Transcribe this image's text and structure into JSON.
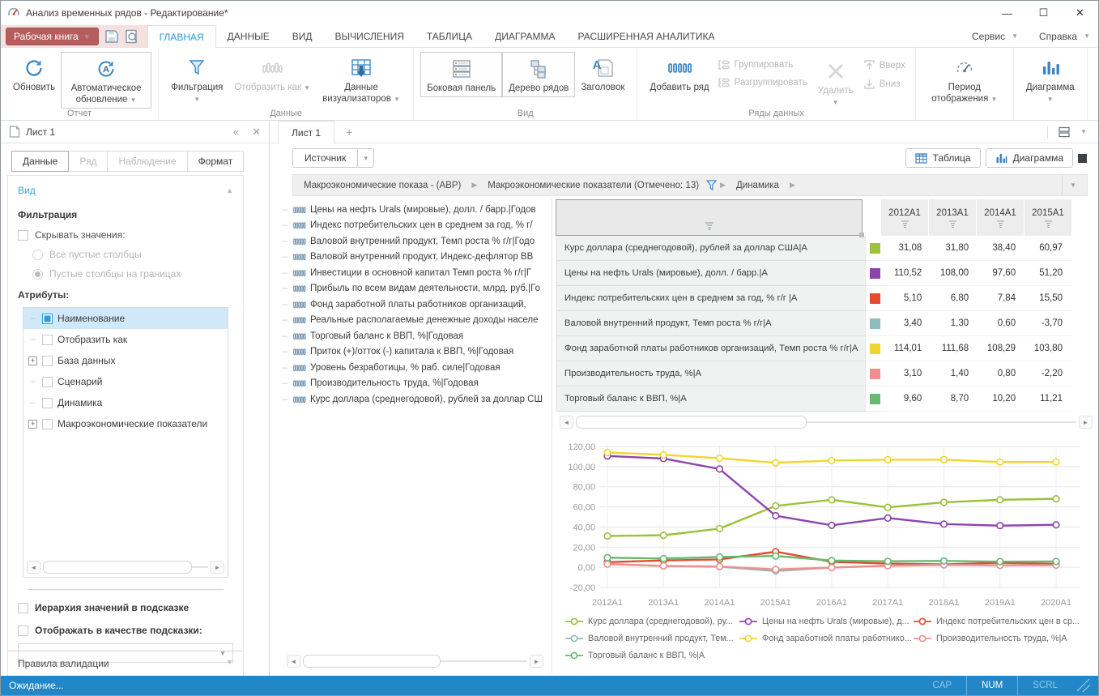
{
  "window": {
    "title": "Анализ временных рядов - Редактирование*"
  },
  "colors": {
    "accent": "#2e9ad5",
    "workbook_button": "#b65d5d",
    "statusbar": "#2287c8"
  },
  "menu": {
    "workbook_button": "Рабочая книга",
    "tabs": [
      {
        "label": "ГЛАВНАЯ",
        "active": true
      },
      {
        "label": "ДАННЫЕ",
        "active": false
      },
      {
        "label": "ВИД",
        "active": false
      },
      {
        "label": "ВЫЧИСЛЕНИЯ",
        "active": false
      },
      {
        "label": "ТАБЛИЦА",
        "active": false
      },
      {
        "label": "ДИАГРАММА",
        "active": false
      },
      {
        "label": "РАСШИРЕННАЯ АНАЛИТИКА",
        "active": false
      }
    ],
    "right_menus": [
      {
        "label": "Сервис"
      },
      {
        "label": "Справка"
      }
    ]
  },
  "ribbon": {
    "groups": {
      "report": "Отчет",
      "data": "Данные",
      "view": "Вид",
      "series": "Ряды данных"
    },
    "buttons": {
      "refresh": "Обновить",
      "auto_refresh": "Автоматическое обновление",
      "filtering": "Фильтрация",
      "display_as": "Отобразить как",
      "visualizer_data": "Данные визуализаторов",
      "side_panel": "Боковая панель",
      "series_tree": "Дерево рядов",
      "title": "Заголовок",
      "add_series": "Добавить ряд",
      "group": "Группировать",
      "ungroup": "Разгруппировать",
      "delete": "Удалить",
      "up": "Вверх",
      "down": "Вниз",
      "display_period": "Период отображения",
      "chart": "Диаграмма"
    }
  },
  "sidebar": {
    "title": "Лист 1",
    "tabs": [
      {
        "label": "Данные",
        "state": "active"
      },
      {
        "label": "Ряд",
        "state": "disabled"
      },
      {
        "label": "Наблюдение",
        "state": "disabled"
      },
      {
        "label": "Формат",
        "state": "normal"
      }
    ],
    "section_view": "Вид",
    "filtering_heading": "Фильтрация",
    "hide_values_label": "Скрывать значения:",
    "radio_all_empty": "Все пустые столбцы",
    "radio_edge_empty": "Пустые столбцы на границах",
    "attributes_heading": "Атрибуты:",
    "attributes": [
      {
        "label": "Наименование",
        "checked": true,
        "selected": true,
        "expandable": false
      },
      {
        "label": "Отобразить как",
        "checked": false,
        "selected": false,
        "expandable": false
      },
      {
        "label": "База данных",
        "checked": false,
        "selected": false,
        "expandable": true
      },
      {
        "label": "Сценарий",
        "checked": false,
        "selected": false,
        "expandable": false
      },
      {
        "label": "Динамика",
        "checked": false,
        "selected": false,
        "expandable": false
      },
      {
        "label": "Макроэкономические показатели",
        "checked": false,
        "selected": false,
        "expandable": true
      }
    ],
    "hierarchy_tooltip_label": "Иерархия значений в подсказке",
    "show_as_tooltip_label": "Отображать в качестве подсказки:",
    "validation_rules": "Правила валидации"
  },
  "sheet": {
    "tab": "Лист 1",
    "new_tab": "+",
    "source_button": "Источник",
    "table_button": "Таблица",
    "chart_button": "Диаграмма",
    "breadcrumb": [
      {
        "label": "Макроэкономические показа - (АВР)",
        "filtered": false
      },
      {
        "label": "Макроэкономические показатели (Отмечено: 13)",
        "filtered": true
      },
      {
        "label": "Динамика",
        "filtered": false
      }
    ]
  },
  "series_panel": {
    "items": [
      "Цены на нефть Urals (мировые), долл. / барр.|Годов",
      "Индекс  потребительских цен в среднем за год, % г/",
      "Валовой внутренний продукт, Темп роста % г/г|Годо",
      "Валовой внутренний продукт, Индекс-дефлятор ВВ",
      "Инвестиции в основной капитал Темп роста % г/г|Г",
      "Прибыль по всем видам деятельности, млрд. руб.|Го",
      "Фонд заработной платы работников организаций,",
      "Реальные располагаемые денежные доходы населе",
      "Торговый баланс к ВВП, %|Годовая",
      "Приток (+)/отток (-) капитала к ВВП, %|Годовая",
      "Уровень безработицы, % раб. силе|Годовая",
      "Производительность труда, %|Годовая",
      "Курс доллара (среднегодовой), рублей за доллар СШ"
    ]
  },
  "table": {
    "columns": [
      "2012A1",
      "2013A1",
      "2014A1",
      "2015A1"
    ],
    "rows": [
      {
        "name": "Курс доллара (среднегодовой), рублей за доллар США|А",
        "color": "#9cc13a",
        "values": [
          "31,08",
          "31,80",
          "38,40",
          "60,97"
        ]
      },
      {
        "name": "Цены на нефть Urals (мировые), долл. / барр.|А",
        "color": "#8e44ad",
        "values": [
          "110,52",
          "108,00",
          "97,60",
          "51,20"
        ]
      },
      {
        "name": "Индекс  потребительских цен в среднем за год, % г/г |А",
        "color": "#e8492f",
        "values": [
          "5,10",
          "6,80",
          "7,84",
          "15,50"
        ]
      },
      {
        "name": "Валовой внутренний продукт, Темп роста % г/г|А",
        "color": "#8fbcbc",
        "values": [
          "3,40",
          "1,30",
          "0,60",
          "-3,70"
        ]
      },
      {
        "name": "Фонд заработной платы работников организаций, Темп роста % г/г|А",
        "color": "#f2d52c",
        "values": [
          "114,01",
          "111,68",
          "108,29",
          "103,80"
        ]
      },
      {
        "name": "Производительность труда, %|А",
        "color": "#f08f8f",
        "values": [
          "3,10",
          "1,40",
          "0,80",
          "-2,20"
        ]
      },
      {
        "name": "Торговый баланс к ВВП, %|А",
        "color": "#66b96f",
        "values": [
          "9,60",
          "8,70",
          "10,20",
          "11,21"
        ]
      }
    ]
  },
  "chart_data": {
    "type": "line",
    "x": [
      "2012A1",
      "2013A1",
      "2014A1",
      "2015A1",
      "2016A1",
      "2017A1",
      "2018A1",
      "2019A1",
      "2020A1"
    ],
    "ylim": [
      -20,
      120
    ],
    "ytick_step": 20,
    "grid": true,
    "legend_position": "bottom",
    "series": [
      {
        "name": "Курс доллара (среднегодовой), ру...",
        "color": "#9cc13a",
        "values": [
          31.08,
          31.8,
          38.4,
          60.97,
          67.0,
          59.5,
          64.5,
          67.0,
          68.0
        ]
      },
      {
        "name": "Цены на нефть Urals (мировые), д...",
        "color": "#8e44ad",
        "values": [
          110.52,
          108.0,
          97.6,
          51.2,
          41.7,
          48.9,
          42.9,
          41.4,
          42.2
        ]
      },
      {
        "name": "Индекс  потребительских цен в ср...",
        "color": "#e8492f",
        "values": [
          5.1,
          6.8,
          7.84,
          15.5,
          5.4,
          3.7,
          2.9,
          4.5,
          3.4
        ]
      },
      {
        "name": "Валовой внутренний продукт, Тем...",
        "color": "#8fbcbc",
        "values": [
          3.4,
          1.3,
          0.6,
          -3.7,
          -0.2,
          1.8,
          2.5,
          2.0,
          2.2
        ]
      },
      {
        "name": "Фонд заработной платы работнико...",
        "color": "#f2d52c",
        "values": [
          114.01,
          111.68,
          108.29,
          103.8,
          106.0,
          106.8,
          106.9,
          104.5,
          104.6
        ]
      },
      {
        "name": "Производительность труда, %|А",
        "color": "#f08f8f",
        "values": [
          3.1,
          1.4,
          0.8,
          -2.2,
          -0.3,
          1.5,
          2.3,
          2.0,
          2.1
        ]
      },
      {
        "name": "Торговый баланс к ВВП, %|А",
        "color": "#66b96f",
        "values": [
          9.6,
          8.7,
          10.2,
          11.21,
          6.7,
          6.0,
          6.3,
          5.6,
          5.8
        ]
      }
    ]
  },
  "statusbar": {
    "status": "Ожидание...",
    "indicators": [
      {
        "label": "CAP",
        "active": false
      },
      {
        "label": "NUM",
        "active": true
      },
      {
        "label": "SCRL",
        "active": false
      }
    ]
  }
}
